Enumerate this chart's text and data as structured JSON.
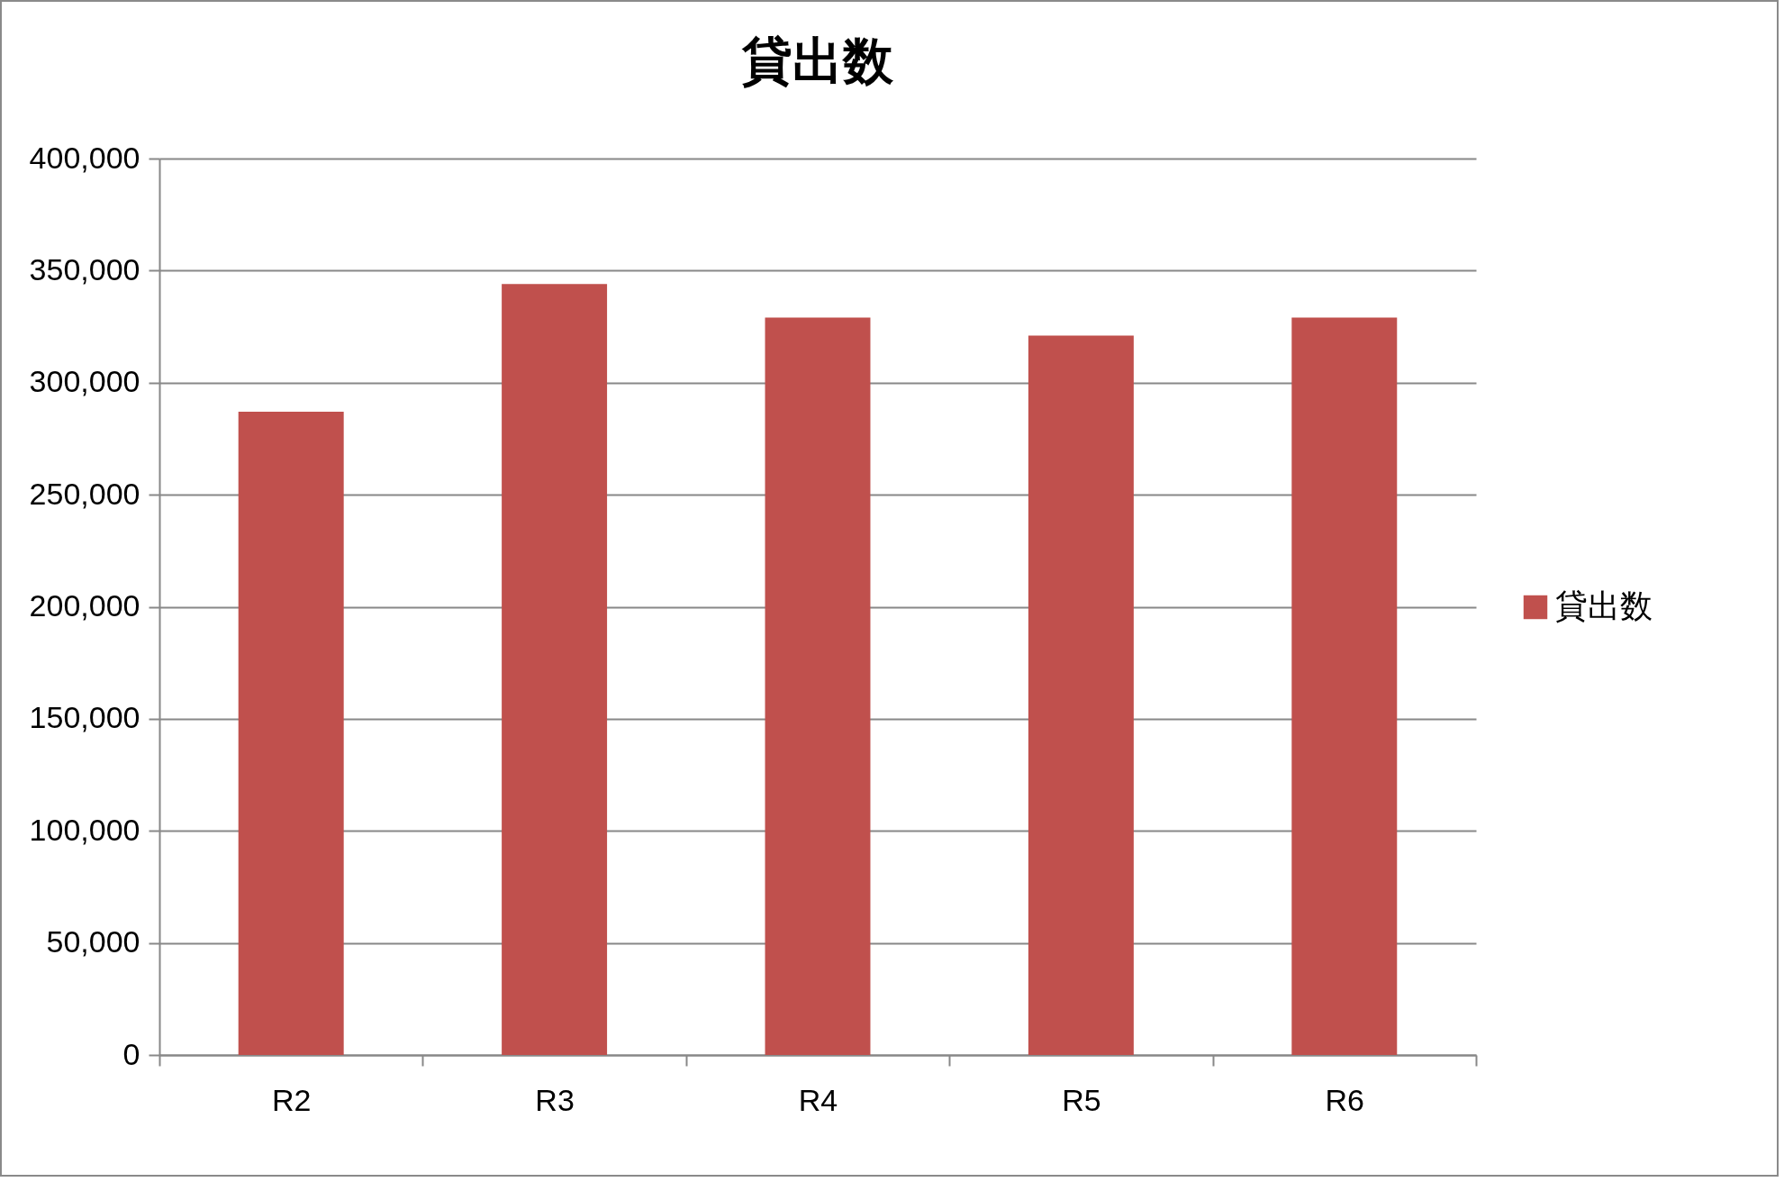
{
  "chart_data": {
    "type": "bar",
    "title": "貸出数",
    "categories": [
      "R2",
      "R3",
      "R4",
      "R5",
      "R6"
    ],
    "series": [
      {
        "name": "貸出数",
        "color": "#c0504d",
        "values": [
          287000,
          344000,
          329000,
          321000,
          329000
        ]
      }
    ],
    "ylim": [
      0,
      400000
    ],
    "yticks": [
      0,
      {
        "value": 50000,
        "label": "50,000"
      },
      {
        "value": 100000,
        "label": "100,000"
      },
      {
        "value": 150000,
        "label": "150,000"
      },
      {
        "value": 200000,
        "label": "200,000"
      },
      {
        "value": 250000,
        "label": "250,000"
      },
      {
        "value": 300000,
        "label": "300,000"
      },
      {
        "value": 350000,
        "label": "350,000"
      },
      {
        "value": 400000,
        "label": "400,000"
      }
    ],
    "grid": "y",
    "legend": "right"
  }
}
